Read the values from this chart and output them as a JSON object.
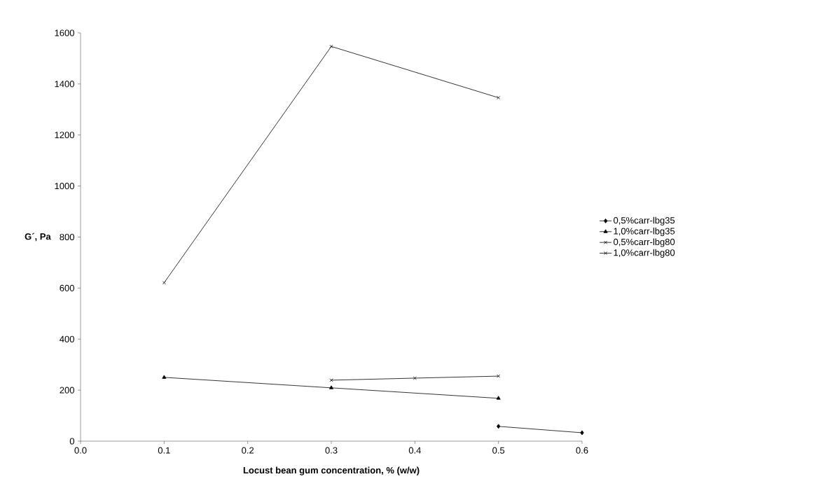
{
  "chart_data": {
    "type": "line",
    "xlabel": "Locust bean gum concentration, % (w/w)",
    "ylabel": "G´, Pa",
    "xlim": [
      0,
      0.6
    ],
    "ylim": [
      0,
      1600
    ],
    "xticks": [
      {
        "value": 0,
        "label": "0.0"
      },
      {
        "value": 0.1,
        "label": "0.1"
      },
      {
        "value": 0.2,
        "label": "0.2"
      },
      {
        "value": 0.3,
        "label": "0.3"
      },
      {
        "value": 0.4,
        "label": "0.4"
      },
      {
        "value": 0.5,
        "label": "0.5"
      },
      {
        "value": 0.6,
        "label": "0.6"
      }
    ],
    "yticks": [
      0,
      200,
      400,
      600,
      800,
      1000,
      1200,
      1400,
      1600
    ],
    "grid": false,
    "legend": "right",
    "line_style": "solid",
    "series": [
      {
        "name": "0,5%carr-lbg35",
        "color": "#000000",
        "marker": "diamond",
        "x": [
          0.5,
          0.6
        ],
        "values": [
          58,
          33
        ]
      },
      {
        "name": "1,0%carr-lbg35",
        "color": "#000000",
        "marker": "triangle",
        "x": [
          0.1,
          0.3,
          0.5
        ],
        "values": [
          250,
          209,
          168
        ]
      },
      {
        "name": "0,5%carr-lbg80",
        "color": "#000000",
        "marker": "cross",
        "x": [
          0.3,
          0.4,
          0.5
        ],
        "values": [
          239,
          247,
          255
        ]
      },
      {
        "name": "1,0%carr-lbg80",
        "color": "#000000",
        "marker": "cross",
        "x": [
          0.1,
          0.3,
          0.5
        ],
        "values": [
          621,
          1547,
          1346
        ]
      }
    ]
  }
}
